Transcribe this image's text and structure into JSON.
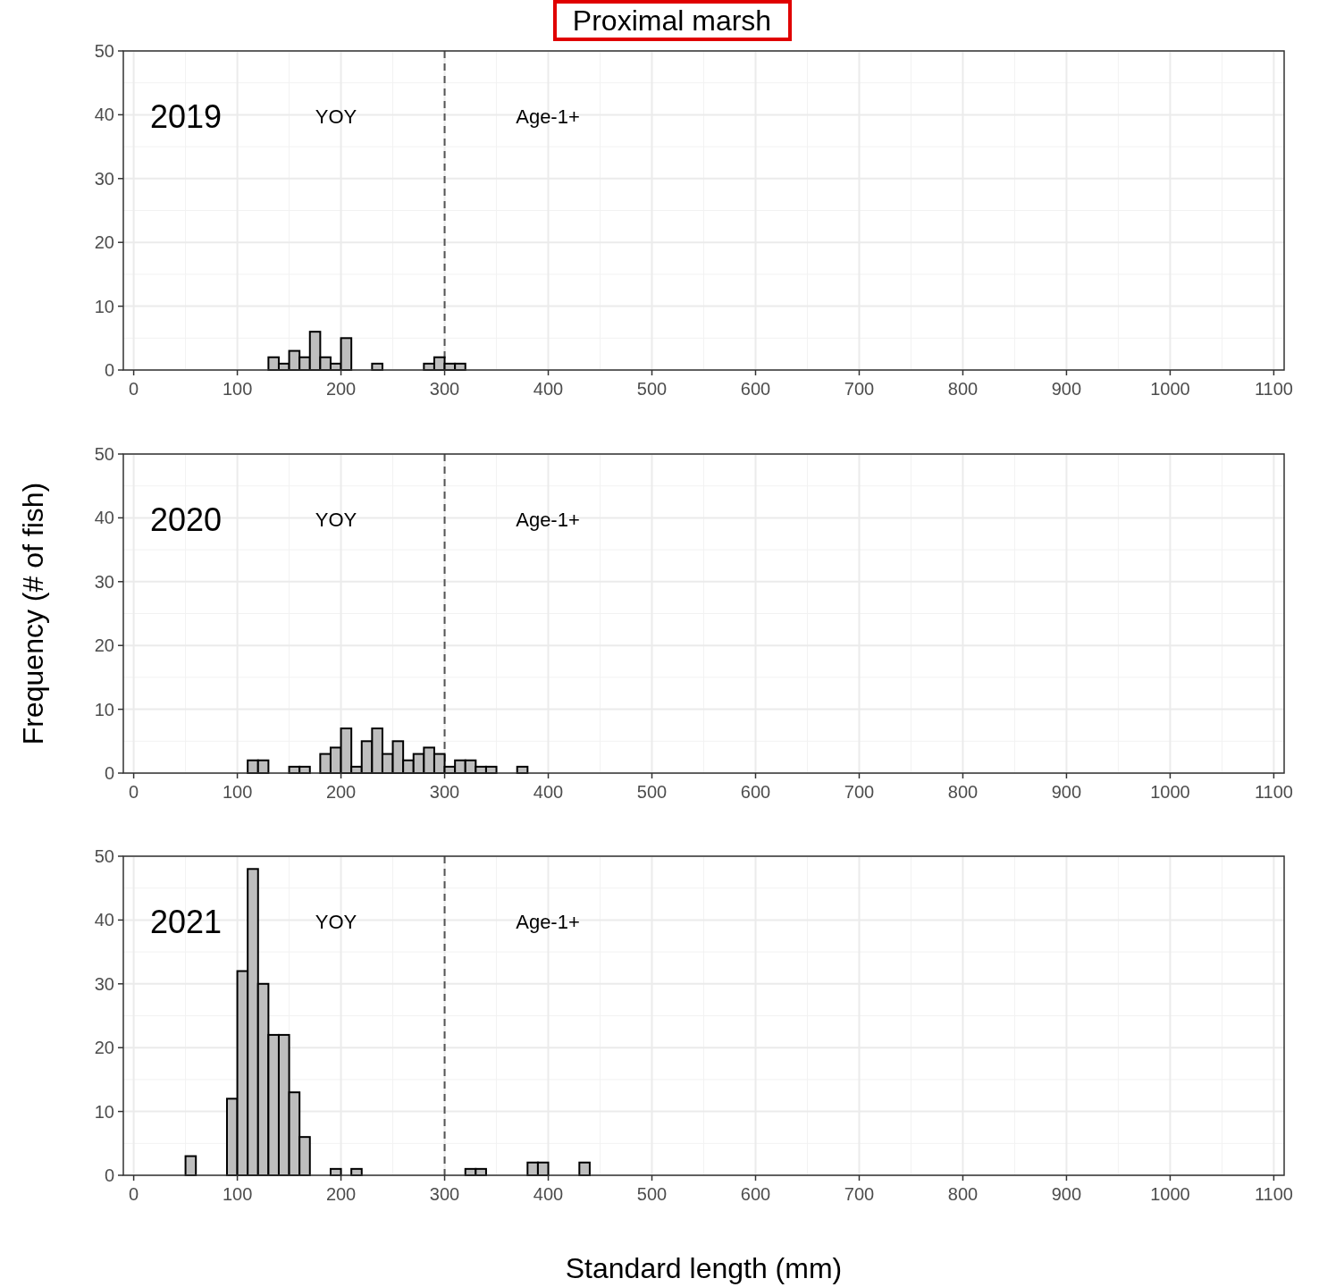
{
  "chart_data": [
    {
      "type": "histogram",
      "title": "Proximal marsh",
      "bins": [
        50,
        60,
        70,
        80,
        90,
        100,
        110,
        120,
        130,
        140,
        150,
        160,
        170,
        180,
        190,
        200,
        210,
        220,
        230,
        240,
        250,
        260,
        270,
        280,
        290,
        300,
        310,
        320,
        330,
        340,
        350,
        360,
        370,
        380,
        390,
        400,
        410,
        420,
        430,
        440
      ],
      "values": [
        0,
        0,
        0,
        0,
        0,
        0,
        0,
        0,
        2,
        1,
        3,
        2,
        6,
        2,
        1,
        5,
        0,
        0,
        1,
        0,
        0,
        0,
        0,
        1,
        2,
        1,
        1,
        0,
        0,
        0,
        0,
        0,
        0,
        0,
        0,
        0,
        0,
        0,
        0
      ],
      "color": "#bebebe",
      "xlim": [
        -10,
        1110
      ],
      "xticks": [
        0,
        100,
        200,
        300,
        400,
        500,
        600,
        700,
        800,
        900,
        1000,
        1100
      ],
      "ylim": [
        0,
        50
      ],
      "yticks": [
        0,
        10,
        20,
        30,
        40,
        50
      ],
      "grid": true,
      "ref_lines": [
        {
          "axis": "x",
          "value": 300,
          "line_style": "dashed",
          "color": "#555555"
        }
      ],
      "annotations": [
        "2019",
        "YOY",
        "Age-1+"
      ]
    },
    {
      "type": "histogram",
      "ylabel": "Frequency (# of fish)",
      "bins": [
        50,
        60,
        70,
        80,
        90,
        100,
        110,
        120,
        130,
        140,
        150,
        160,
        170,
        180,
        190,
        200,
        210,
        220,
        230,
        240,
        250,
        260,
        270,
        280,
        290,
        300,
        310,
        320,
        330,
        340,
        350,
        360,
        370,
        380,
        390,
        400,
        410,
        420,
        430,
        440
      ],
      "values": [
        0,
        0,
        0,
        0,
        0,
        0,
        2,
        2,
        0,
        0,
        1,
        1,
        0,
        3,
        4,
        7,
        1,
        5,
        7,
        3,
        5,
        2,
        3,
        4,
        3,
        1,
        2,
        2,
        1,
        1,
        0,
        0,
        1,
        0,
        0,
        0,
        0,
        0,
        0
      ],
      "color": "#bebebe",
      "xlim": [
        -10,
        1110
      ],
      "xticks": [
        0,
        100,
        200,
        300,
        400,
        500,
        600,
        700,
        800,
        900,
        1000,
        1100
      ],
      "ylim": [
        0,
        50
      ],
      "yticks": [
        0,
        10,
        20,
        30,
        40,
        50
      ],
      "grid": true,
      "ref_lines": [
        {
          "axis": "x",
          "value": 300,
          "line_style": "dashed",
          "color": "#555555"
        }
      ],
      "annotations": [
        "2020",
        "YOY",
        "Age-1+"
      ]
    },
    {
      "type": "histogram",
      "xlabel": "Standard length (mm)",
      "bins": [
        50,
        60,
        70,
        80,
        90,
        100,
        110,
        120,
        130,
        140,
        150,
        160,
        170,
        180,
        190,
        200,
        210,
        220,
        230,
        240,
        250,
        260,
        270,
        280,
        290,
        300,
        310,
        320,
        330,
        340,
        350,
        360,
        370,
        380,
        390,
        400,
        410,
        420,
        430,
        440
      ],
      "values": [
        3,
        0,
        0,
        0,
        12,
        32,
        48,
        30,
        22,
        22,
        13,
        6,
        0,
        0,
        1,
        0,
        1,
        0,
        0,
        0,
        0,
        0,
        0,
        0,
        0,
        0,
        0,
        1,
        1,
        0,
        0,
        0,
        0,
        2,
        2,
        0,
        0,
        0,
        2
      ],
      "color": "#bebebe",
      "xlim": [
        -10,
        1110
      ],
      "xticks": [
        0,
        100,
        200,
        300,
        400,
        500,
        600,
        700,
        800,
        900,
        1000,
        1100
      ],
      "ylim": [
        0,
        50
      ],
      "yticks": [
        0,
        10,
        20,
        30,
        40,
        50
      ],
      "grid": true,
      "ref_lines": [
        {
          "axis": "x",
          "value": 300,
          "line_style": "dashed",
          "color": "#555555"
        }
      ],
      "annotations": [
        "2021",
        "YOY",
        "Age-1+"
      ]
    }
  ]
}
